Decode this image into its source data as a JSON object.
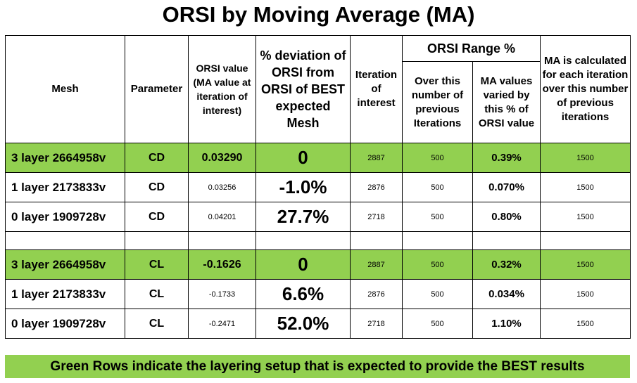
{
  "title": "ORSI by Moving Average (MA)",
  "header": {
    "mesh": "Mesh",
    "parameter": "Parameter",
    "orsi_value": "ORSI value (MA value at iteration of interest)",
    "deviation": "% deviation of ORSI from ORSI of BEST expected Mesh",
    "iteration": "Iteration of interest",
    "orsi_range": "ORSI Range %",
    "over_previous": "Over this number of previous Iterations",
    "ma_varied": "MA values varied by this % of ORSI value",
    "ma_calc": "MA is calculated for each iteration over this number of previous iterations"
  },
  "rows_cd": [
    {
      "mesh": "3 layer 2664958v",
      "param": "CD",
      "orsi": "0.03290",
      "dev": "0",
      "iter": "2887",
      "over": "500",
      "varied": "0.39%",
      "ma": "1500",
      "green": true
    },
    {
      "mesh": "1 layer 2173833v",
      "param": "CD",
      "orsi": "0.03256",
      "dev": "-1.0%",
      "iter": "2876",
      "over": "500",
      "varied": "0.070%",
      "ma": "1500",
      "green": false
    },
    {
      "mesh": "0 layer 1909728v",
      "param": "CD",
      "orsi": "0.04201",
      "dev": "27.7%",
      "iter": "2718",
      "over": "500",
      "varied": "0.80%",
      "ma": "1500",
      "green": false
    }
  ],
  "rows_cl": [
    {
      "mesh": "3 layer 2664958v",
      "param": "CL",
      "orsi": "-0.1626",
      "dev": "0",
      "iter": "2887",
      "over": "500",
      "varied": "0.32%",
      "ma": "1500",
      "green": true
    },
    {
      "mesh": "1 layer 2173833v",
      "param": "CL",
      "orsi": "-0.1733",
      "dev": "6.6%",
      "iter": "2876",
      "over": "500",
      "varied": "0.034%",
      "ma": "1500",
      "green": false
    },
    {
      "mesh": "0 layer 1909728v",
      "param": "CL",
      "orsi": "-0.2471",
      "dev": "52.0%",
      "iter": "2718",
      "over": "500",
      "varied": "1.10%",
      "ma": "1500",
      "green": false
    }
  ],
  "footer": "Green Rows indicate the layering setup that is expected to provide the BEST results",
  "colors": {
    "green": "#92d050"
  }
}
